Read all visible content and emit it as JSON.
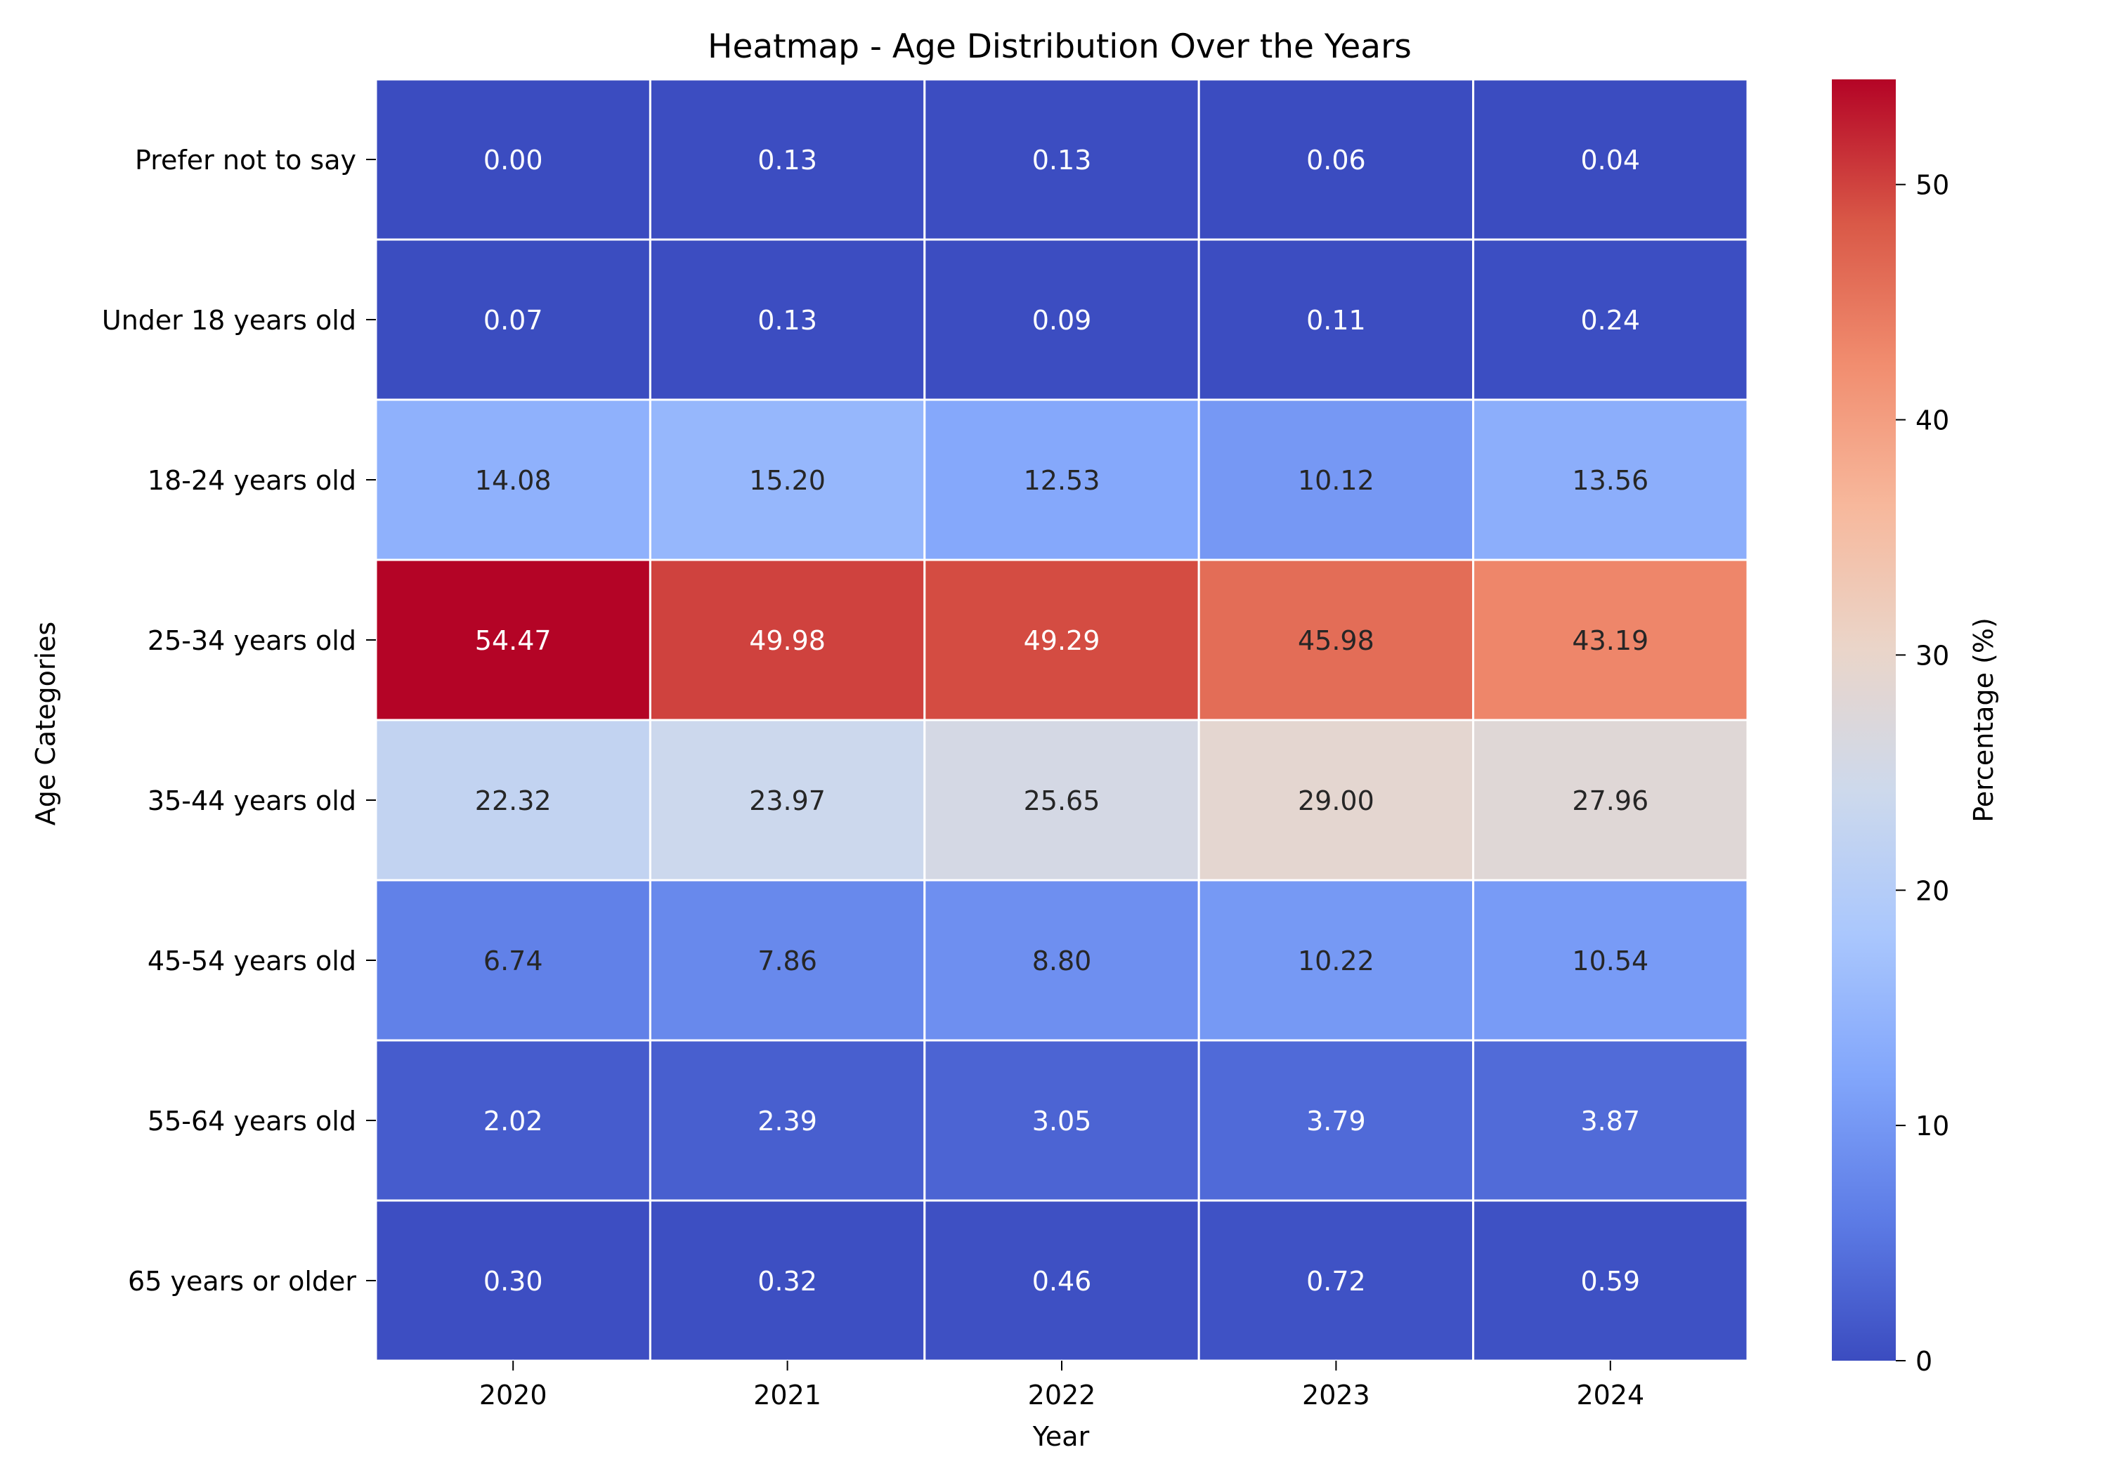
{
  "chart_data": {
    "type": "heatmap",
    "title": "Heatmap - Age Distribution Over the Years",
    "xlabel": "Year",
    "ylabel": "Age Categories",
    "colorbar_label": "Percentage (%)",
    "colormap": "coolwarm",
    "color_range": [
      0,
      54.47
    ],
    "colorbar_ticks": [
      0,
      10,
      20,
      30,
      40,
      50
    ],
    "x": [
      "2020",
      "2021",
      "2022",
      "2023",
      "2024"
    ],
    "y": [
      "Prefer not to say",
      "Under 18 years old",
      "18-24 years old",
      "25-34 years old",
      "35-44 years old",
      "45-54 years old",
      "55-64 years old",
      "65 years or older"
    ],
    "values": [
      [
        0.0,
        0.13,
        0.13,
        0.06,
        0.04
      ],
      [
        0.07,
        0.13,
        0.09,
        0.11,
        0.24
      ],
      [
        14.08,
        15.2,
        12.53,
        10.12,
        13.56
      ],
      [
        54.47,
        49.98,
        49.29,
        45.98,
        43.19
      ],
      [
        22.32,
        23.97,
        25.65,
        29.0,
        27.96
      ],
      [
        6.74,
        7.86,
        8.8,
        10.22,
        10.54
      ],
      [
        2.02,
        2.39,
        3.05,
        3.79,
        3.87
      ],
      [
        0.3,
        0.32,
        0.46,
        0.72,
        0.59
      ]
    ],
    "value_format": "0.00",
    "cell_border_color": "#ffffff",
    "colormap_stops": [
      "#3b4cc0",
      "#5d7ce6",
      "#82a6fb",
      "#aac7fd",
      "#cdd9ec",
      "#ead5c9",
      "#f7b89c",
      "#f18d6f",
      "#d95847",
      "#b40426"
    ]
  }
}
